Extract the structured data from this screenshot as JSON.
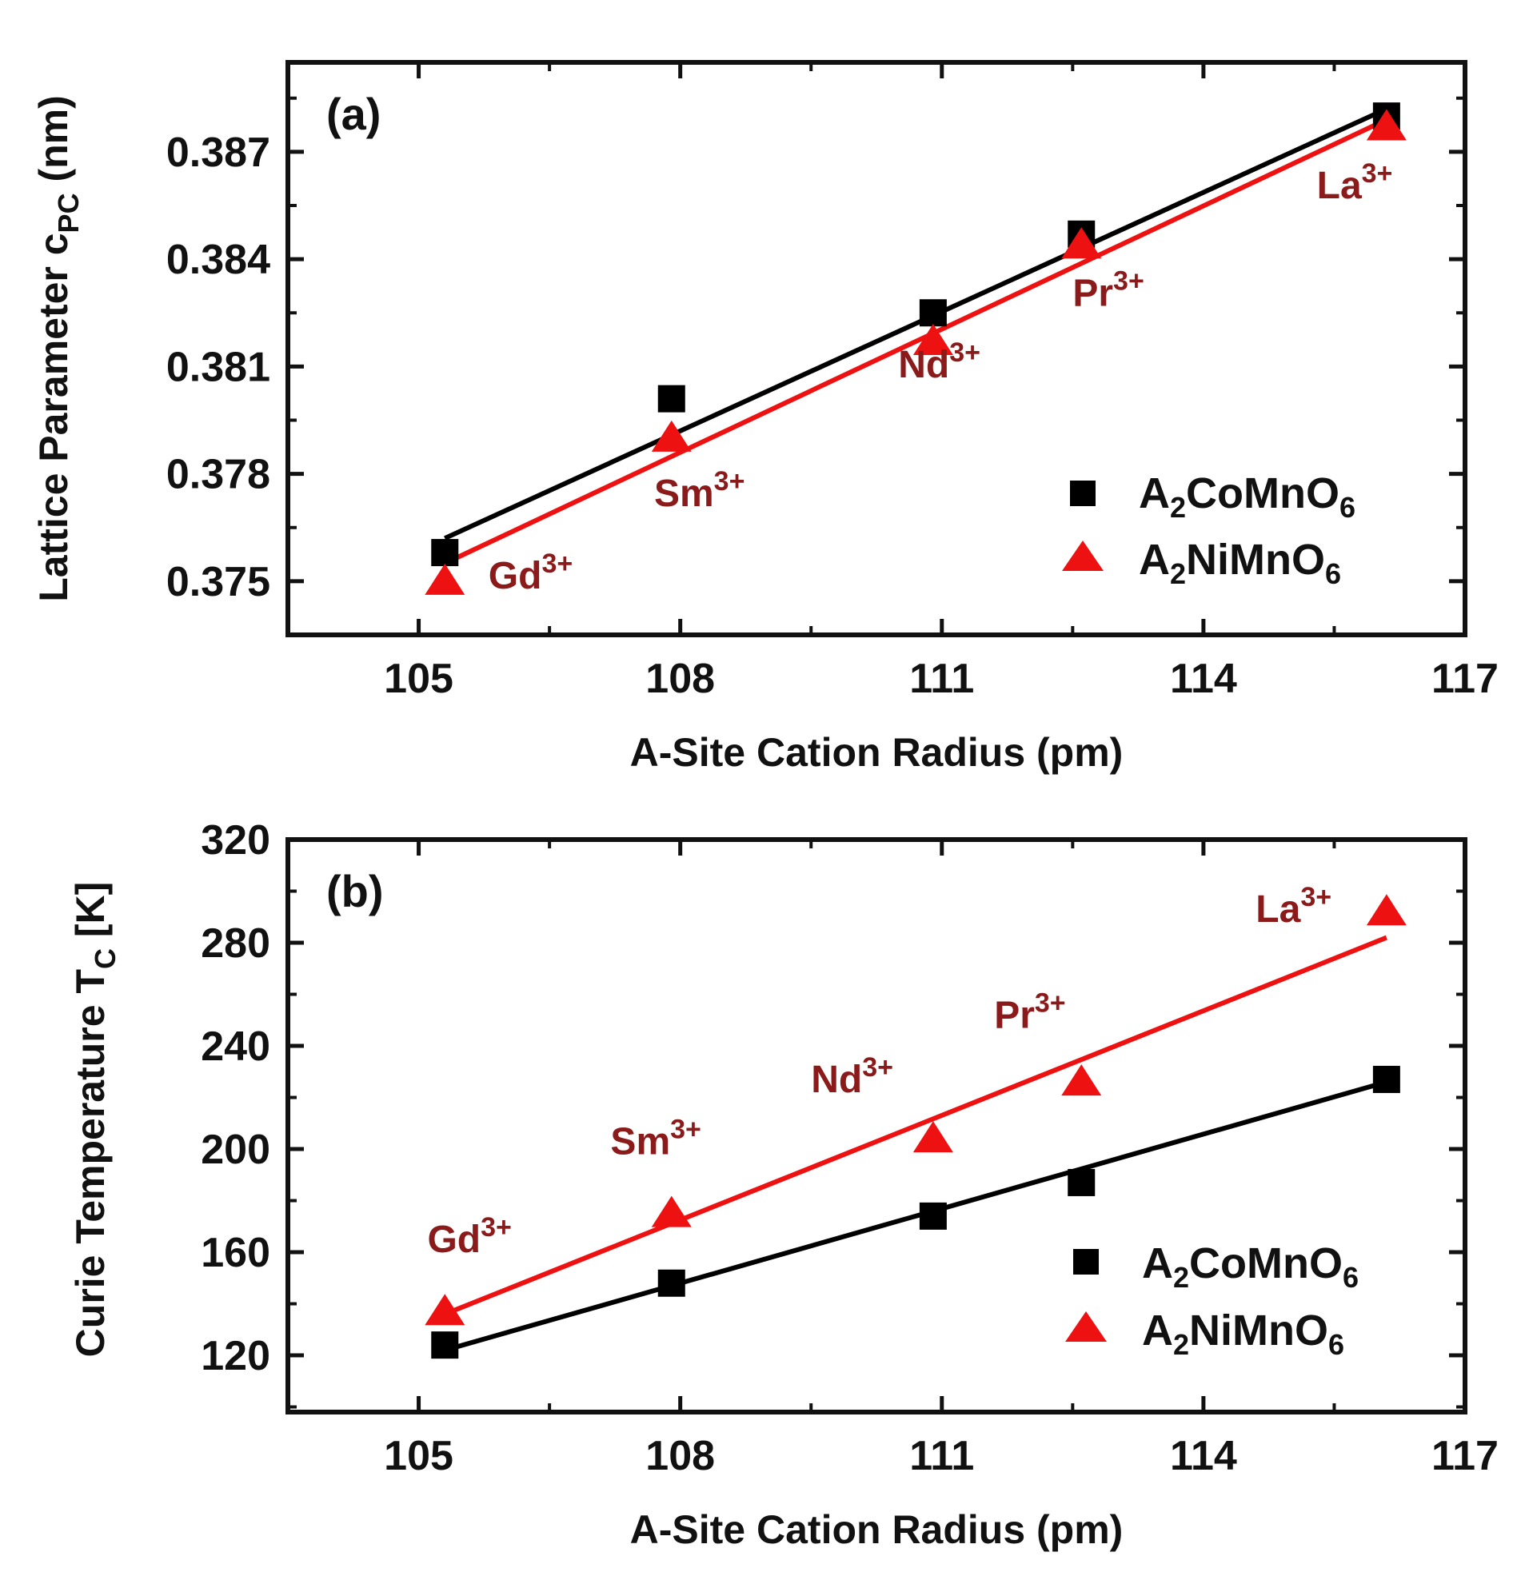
{
  "chart_data": [
    {
      "type": "scatter",
      "panel_label": "(a)",
      "xlabel": "A-Site Cation Radius (pm)",
      "ylabel": {
        "base": "Lattice Parameter c",
        "sub": "PC",
        "unit": " (nm)"
      },
      "xlim": [
        103.5,
        117
      ],
      "ylim": [
        0.3735,
        0.3895
      ],
      "xticks": [
        "105",
        "108",
        "111",
        "114",
        "117"
      ],
      "yticks": [
        "0.375",
        "0.378",
        "0.381",
        "0.384",
        "0.387"
      ],
      "series": [
        {
          "name": "A2CoMnO6",
          "legend": {
            "pre": "A",
            "sub1": "2",
            "mid": "CoMnO",
            "sub2": "6"
          },
          "marker": "square",
          "color": "#000000",
          "x": [
            105.3,
            107.9,
            110.9,
            112.6,
            116.1
          ],
          "y": [
            0.3758,
            0.3801,
            0.3825,
            0.3847,
            0.388
          ],
          "fit": [
            [
              105.3,
              0.3762
            ],
            [
              116.1,
              0.3882
            ]
          ]
        },
        {
          "name": "A2NiMnO6",
          "legend": {
            "pre": "A",
            "sub1": "2",
            "mid": "NiMnO",
            "sub2": "6"
          },
          "marker": "triangle",
          "color": "#ee1111",
          "x": [
            105.3,
            107.9,
            110.9,
            112.6,
            116.1
          ],
          "y": [
            0.375,
            0.379,
            0.3817,
            0.3844,
            0.3877
          ],
          "fit": [
            [
              105.3,
              0.3755
            ],
            [
              116.1,
              0.3879
            ]
          ]
        }
      ],
      "annotations": [
        {
          "base": "Gd",
          "sup": "3+",
          "x": 105.8,
          "y": 0.3748
        },
        {
          "base": "Sm",
          "sup": "3+",
          "x": 107.7,
          "y": 0.3771
        },
        {
          "base": "Nd",
          "sup": "3+",
          "x": 110.5,
          "y": 0.3807
        },
        {
          "base": "Pr",
          "sup": "3+",
          "x": 112.5,
          "y": 0.3827
        },
        {
          "base": "La",
          "sup": "3+",
          "x": 115.3,
          "y": 0.3857
        }
      ]
    },
    {
      "type": "scatter",
      "panel_label": "(b)",
      "xlabel": "A-Site Cation Radius (pm)",
      "ylabel": {
        "base": "Curie Temperature T",
        "sub": "C",
        "unit": " [K]"
      },
      "xlim": [
        103.5,
        117
      ],
      "ylim": [
        98,
        320
      ],
      "xticks": [
        "105",
        "108",
        "111",
        "114",
        "117"
      ],
      "yticks": [
        "120",
        "160",
        "200",
        "240",
        "280",
        "320"
      ],
      "series": [
        {
          "name": "A2CoMnO6",
          "legend": {
            "pre": "A",
            "sub1": "2",
            "mid": "CoMnO",
            "sub2": "6"
          },
          "marker": "square",
          "color": "#000000",
          "x": [
            105.3,
            107.9,
            110.9,
            112.6,
            116.1
          ],
          "y": [
            124,
            148,
            174,
            187,
            227
          ],
          "fit": [
            [
              105.3,
              122
            ],
            [
              116.1,
              226
            ]
          ]
        },
        {
          "name": "A2NiMnO6",
          "legend": {
            "pre": "A",
            "sub1": "2",
            "mid": "NiMnO",
            "sub2": "6"
          },
          "marker": "triangle",
          "color": "#ee1111",
          "x": [
            105.3,
            107.9,
            110.9,
            112.6,
            116.1
          ],
          "y": [
            137,
            175,
            204,
            226,
            292
          ],
          "fit": [
            [
              105.3,
              136
            ],
            [
              116.1,
              282
            ]
          ]
        }
      ],
      "annotations": [
        {
          "base": "Gd",
          "sup": "3+",
          "x": 105.1,
          "y": 160
        },
        {
          "base": "Sm",
          "sup": "3+",
          "x": 107.2,
          "y": 198
        },
        {
          "base": "Nd",
          "sup": "3+",
          "x": 109.5,
          "y": 222
        },
        {
          "base": "Pr",
          "sup": "3+",
          "x": 111.6,
          "y": 247
        },
        {
          "base": "La",
          "sup": "3+",
          "x": 114.6,
          "y": 288
        }
      ]
    }
  ]
}
